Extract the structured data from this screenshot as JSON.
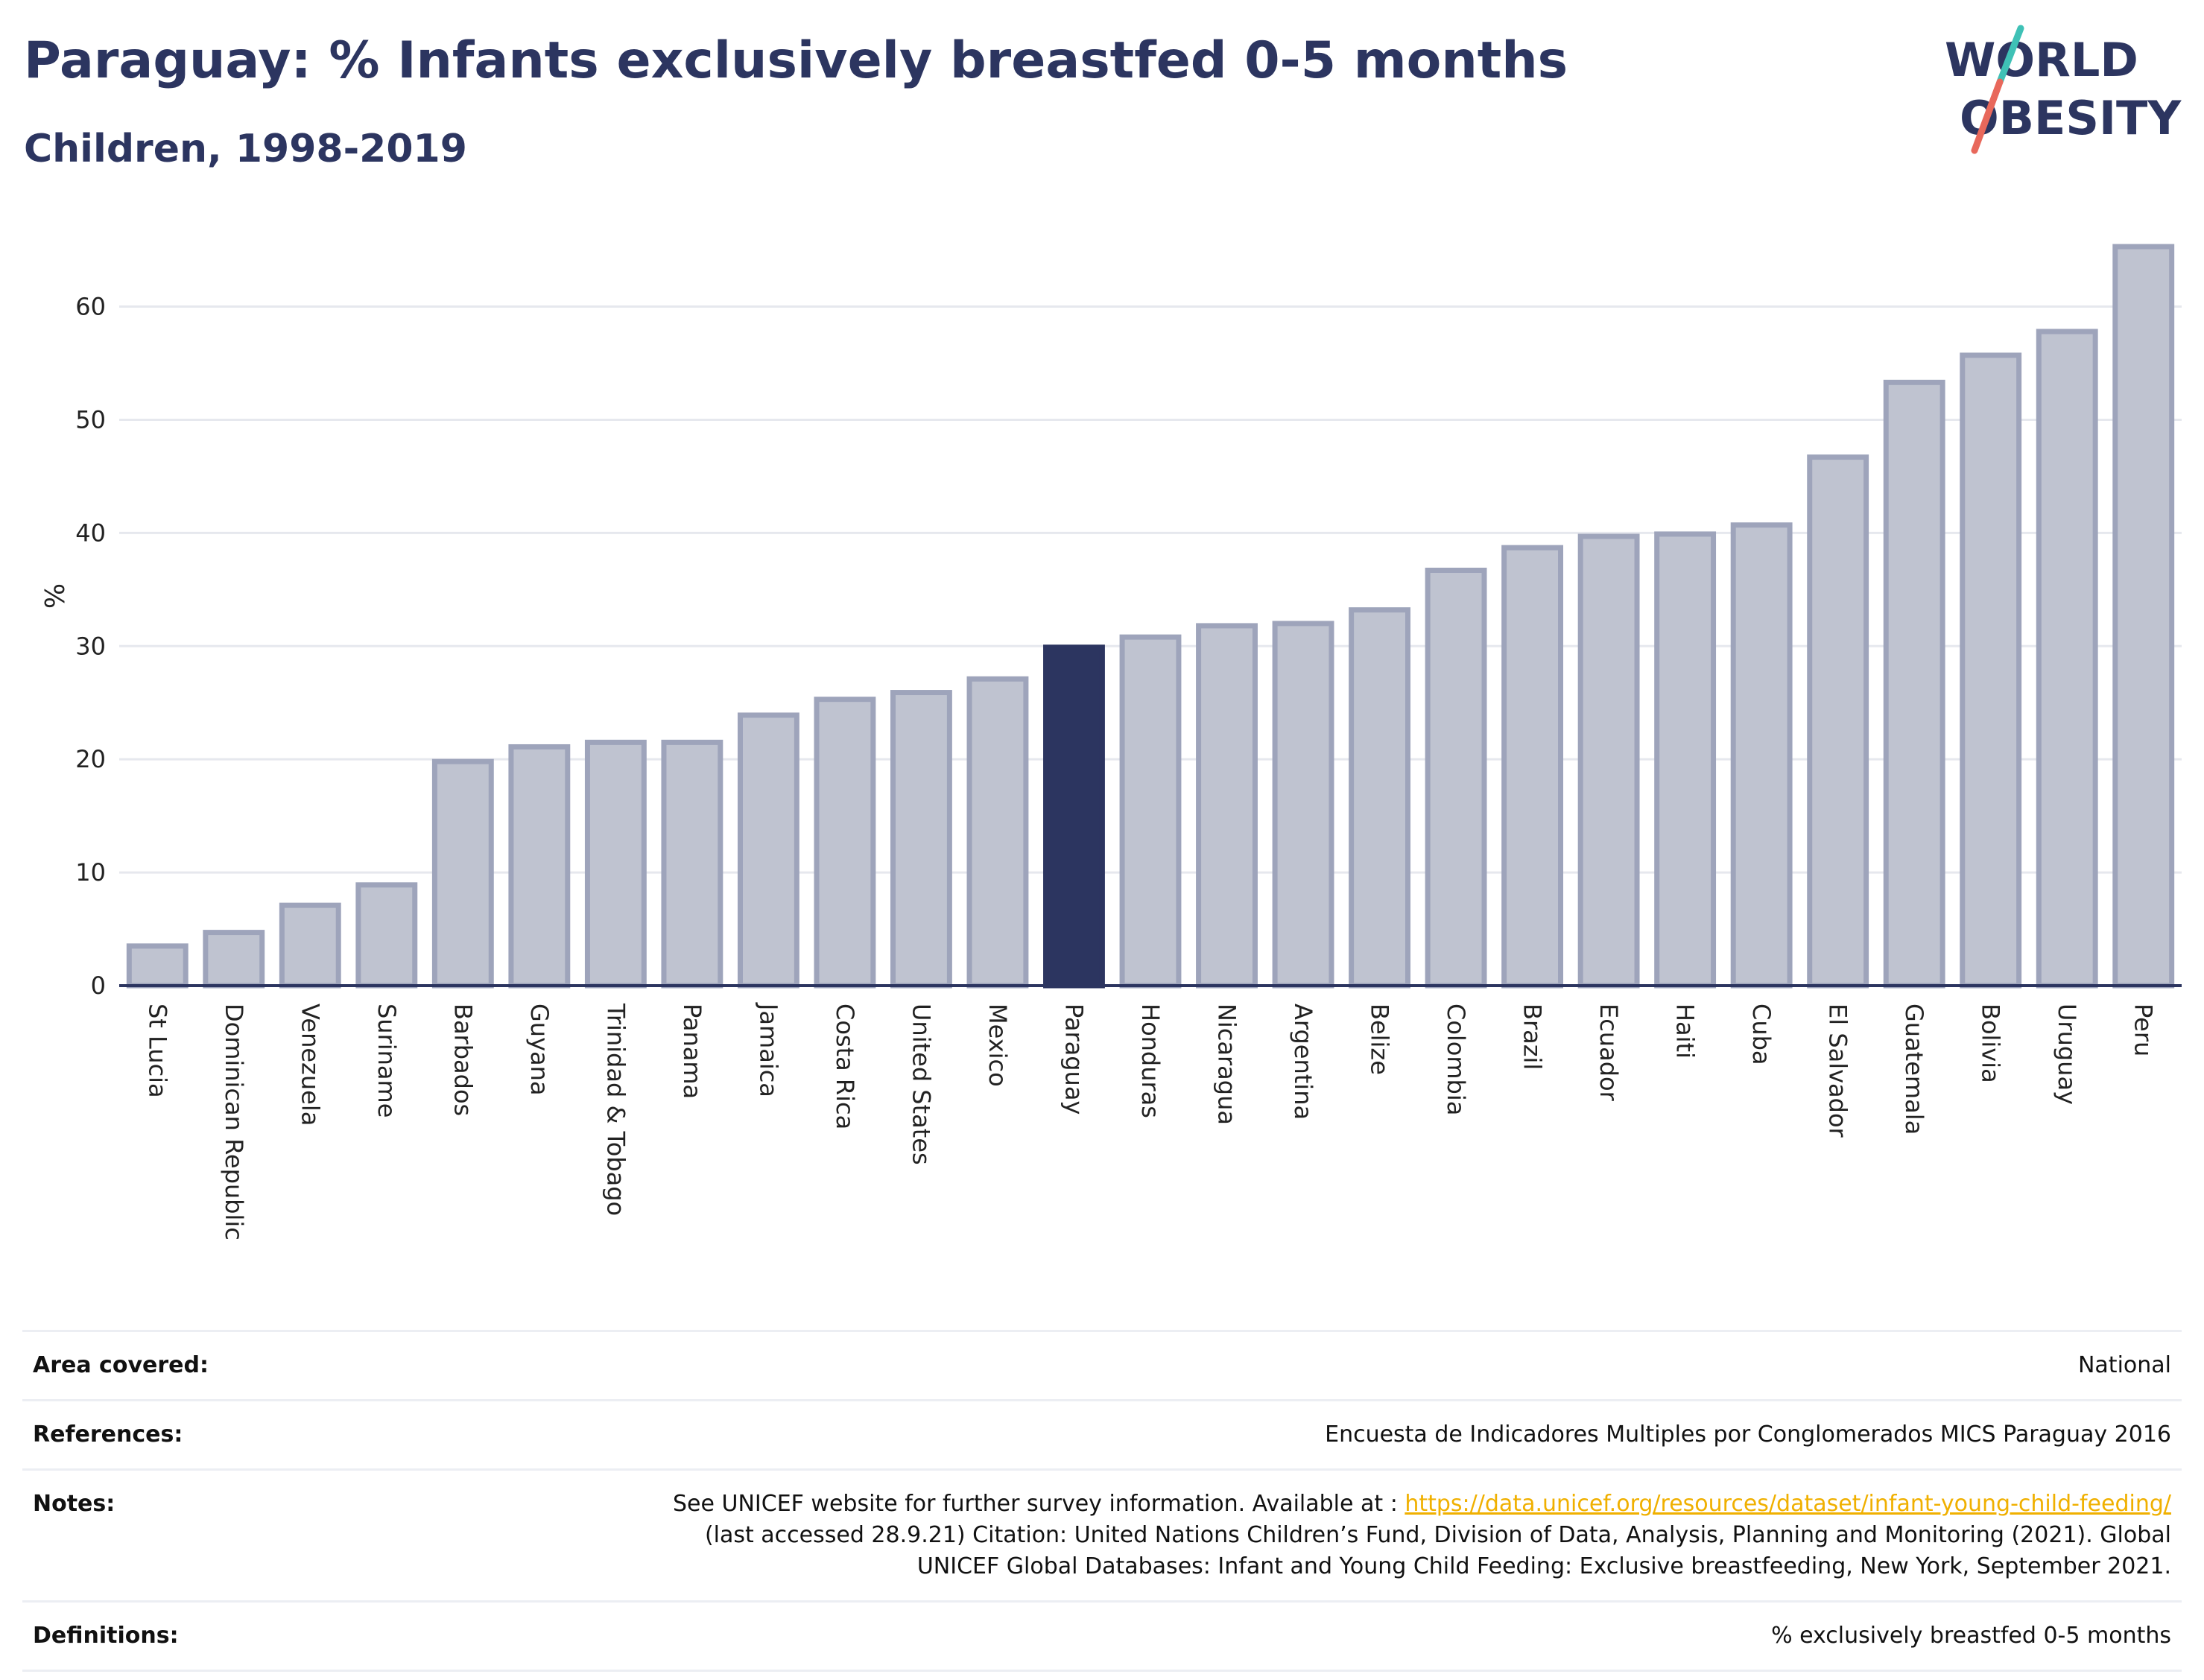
{
  "header": {
    "title": "Paraguay: % Infants exclusively breastfed 0-5 months",
    "subtitle": "Children, 1998-2019"
  },
  "logo": {
    "line1": "WORLD",
    "line2": "OBESITY",
    "colors": {
      "text": "#2c3560",
      "teal": "#3fc1b6",
      "coral": "#e8685b"
    }
  },
  "colors": {
    "bar": "#bfc3d0",
    "bar_stroke": "#9ea4bb",
    "highlight": "#2c3560",
    "grid": "#e6e8ee",
    "axis": "#2c3560"
  },
  "chart_data": {
    "type": "bar",
    "ylabel": "%",
    "ylim": [
      0,
      68
    ],
    "yticks": [
      0,
      10,
      20,
      30,
      40,
      50,
      60
    ],
    "grid": true,
    "highlight": "Paraguay",
    "categories": [
      "St Lucia",
      "Dominican Republic",
      "Venezuela",
      "Suriname",
      "Barbados",
      "Guyana",
      "Trinidad & Tobago",
      "Panama",
      "Jamaica",
      "Costa Rica",
      "United States",
      "Mexico",
      "Paraguay",
      "Honduras",
      "Nicaragua",
      "Argentina",
      "Belize",
      "Colombia",
      "Brazil",
      "Ecuador",
      "Haiti",
      "Cuba",
      "El Salvador",
      "Guatemala",
      "Bolivia",
      "Uruguay",
      "Peru"
    ],
    "values": [
      3.5,
      4.7,
      7.1,
      8.9,
      19.8,
      21.1,
      21.5,
      21.5,
      23.9,
      25.3,
      25.9,
      27.1,
      29.9,
      30.8,
      31.8,
      32.0,
      33.2,
      36.7,
      38.7,
      39.7,
      39.9,
      40.7,
      46.7,
      53.3,
      55.7,
      57.8,
      65.3
    ]
  },
  "info": {
    "area_label": "Area covered:",
    "area_value": "National",
    "references_label": "References:",
    "references_value": "Encuesta de Indicadores Multiples por Conglomerados MICS Paraguay 2016",
    "notes_label": "Notes:",
    "notes_prefix": "See UNICEF website for further survey information. Available at : ",
    "notes_link": "https://data.unicef.org/resources/dataset/infant-young-child-feeding/",
    "notes_line2": "(last accessed 28.9.21) Citation: United Nations Children’s Fund, Division of Data, Analysis, Planning and Monitoring (2021). Global",
    "notes_line3": "UNICEF Global Databases: Infant and Young Child Feeding: Exclusive breastfeeding, New York, September 2021.",
    "definitions_label": "Definitions:",
    "definitions_value": "% exclusively breastfed 0-5 months"
  }
}
